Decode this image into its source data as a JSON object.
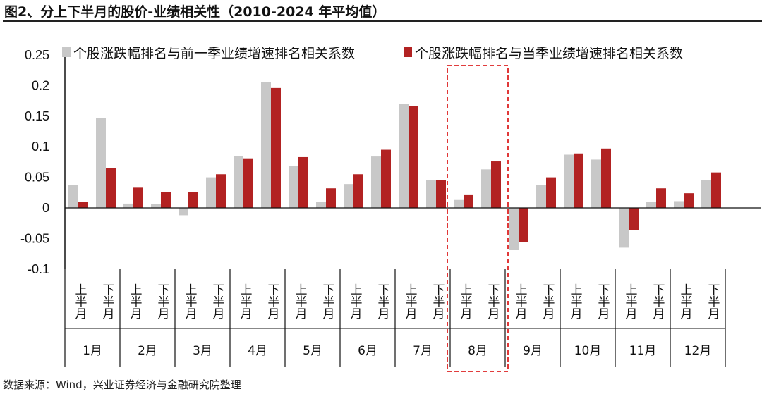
{
  "title": "图2、分上下半月的股价-业绩相关性（2010-2024 年平均值）",
  "source": "数据来源：Wind，兴业证券经济与金融研究院整理",
  "chart_data": {
    "type": "bar",
    "ylim": [
      -0.1,
      0.25
    ],
    "yticks": [
      "0.25",
      "0.2",
      "0.15",
      "0.1",
      "0.05",
      "0",
      "-0.05",
      "-0.1"
    ],
    "ytick_values": [
      0.25,
      0.2,
      0.15,
      0.1,
      0.05,
      0,
      -0.05,
      -0.1
    ],
    "legend_position": "top",
    "months": [
      "1月",
      "2月",
      "3月",
      "4月",
      "5月",
      "6月",
      "7月",
      "8月",
      "9月",
      "10月",
      "11月",
      "12月"
    ],
    "halves": [
      "上半月",
      "下半月"
    ],
    "highlight_month": "8月",
    "series": [
      {
        "name": "个股涨跌幅排名与前一季业绩增速排名相关系数",
        "color": "#c8c8c8",
        "values": [
          0.037,
          0.147,
          0.007,
          0.006,
          -0.012,
          0.05,
          0.085,
          0.206,
          0.069,
          0.01,
          0.039,
          0.084,
          0.17,
          0.045,
          0.013,
          0.063,
          -0.069,
          0.037,
          0.087,
          0.079,
          -0.065,
          0.01,
          0.011,
          0.045
        ]
      },
      {
        "name": "个股涨跌幅排名与当季业绩增速排名相关系数",
        "color": "#b22222",
        "values": [
          0.01,
          0.065,
          0.033,
          0.026,
          0.026,
          0.055,
          0.081,
          0.196,
          0.083,
          0.032,
          0.055,
          0.095,
          0.167,
          0.046,
          0.022,
          0.076,
          -0.056,
          0.05,
          0.089,
          0.097,
          -0.036,
          0.032,
          0.024,
          0.058
        ]
      }
    ]
  }
}
